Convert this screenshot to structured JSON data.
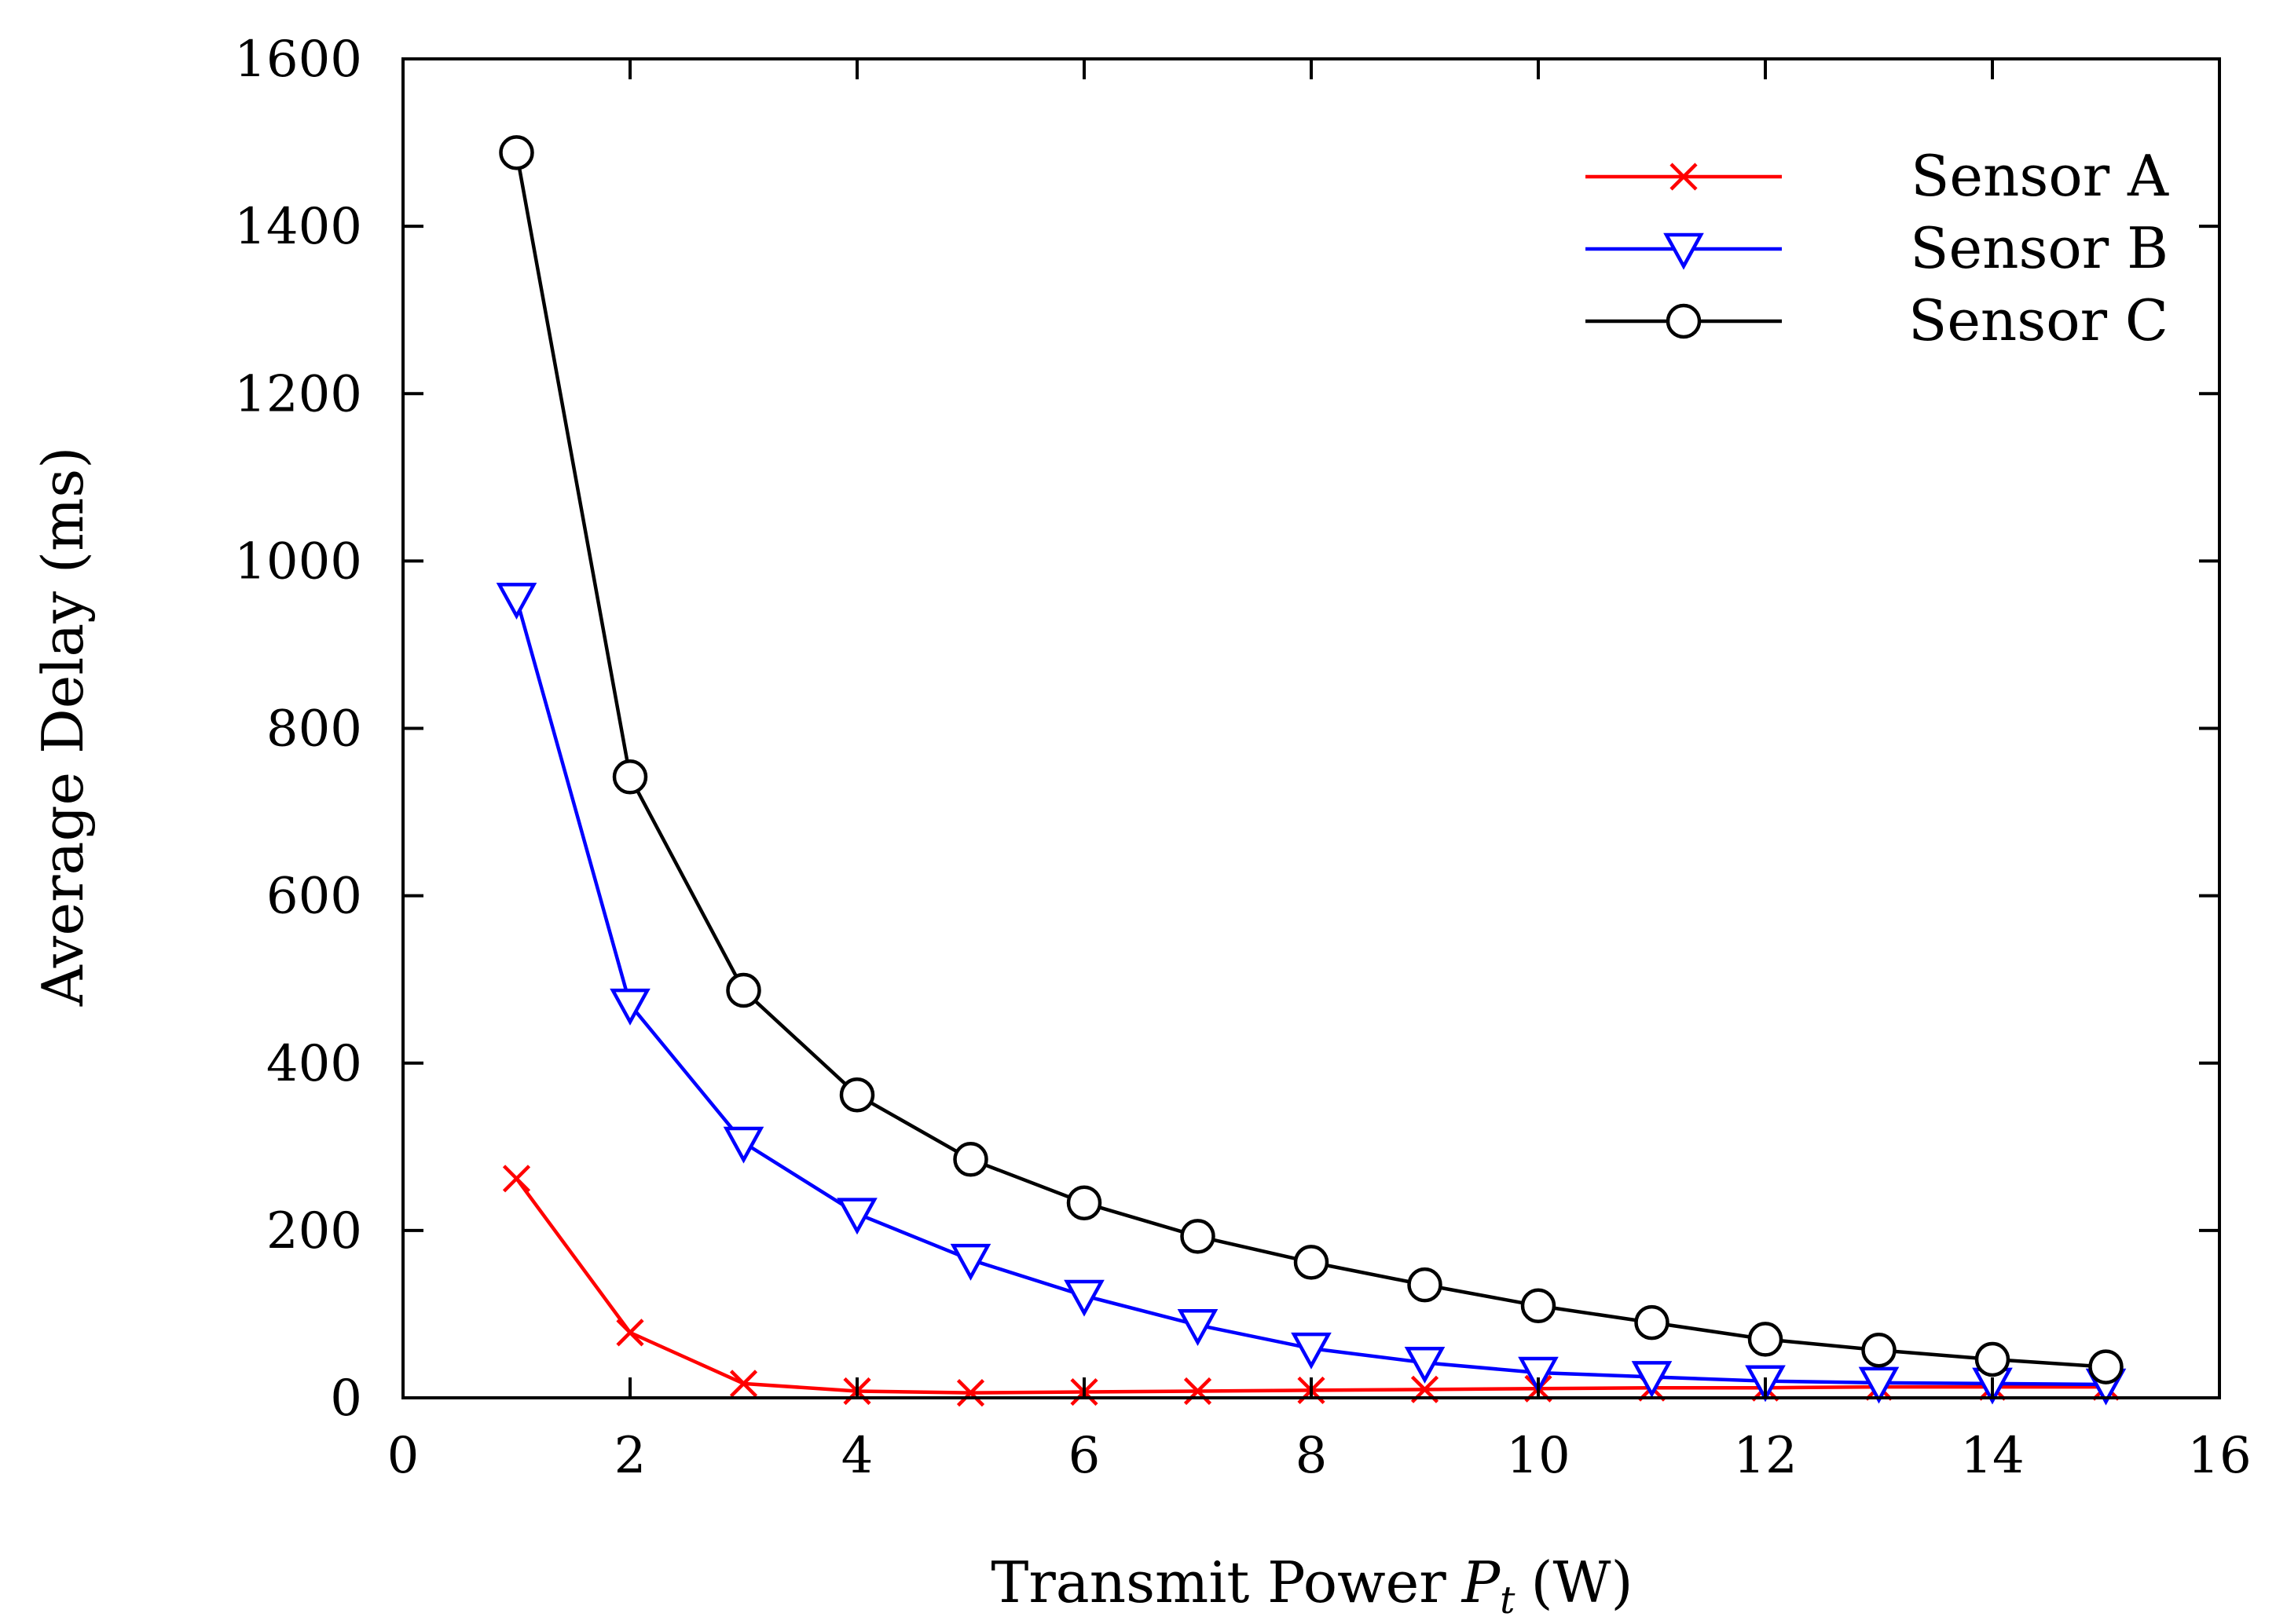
{
  "chart_data": {
    "type": "line",
    "title": "",
    "xlabel": "Transmit Power",
    "xlabel_symbol": "P",
    "xlabel_subscript": "t",
    "xlabel_unit": "(W)",
    "ylabel": "Average Delay (ms)",
    "xlim": [
      0,
      16
    ],
    "ylim": [
      0,
      1600
    ],
    "x_ticks": [
      0,
      2,
      4,
      6,
      8,
      10,
      12,
      14,
      16
    ],
    "y_ticks": [
      0,
      200,
      400,
      600,
      800,
      1000,
      1200,
      1400,
      1600
    ],
    "grid": false,
    "legend_position": "top-right",
    "x": [
      1,
      2,
      3,
      4,
      5,
      6,
      7,
      8,
      9,
      10,
      11,
      12,
      13,
      14,
      15
    ],
    "series": [
      {
        "name": "Sensor A",
        "color": "#ff0000",
        "marker": "x",
        "values": [
          262,
          78,
          17,
          8,
          6,
          7,
          8,
          9,
          10,
          11,
          12,
          12,
          13,
          13,
          13
        ]
      },
      {
        "name": "Sensor B",
        "color": "#0000ff",
        "marker": "triangle-down",
        "values": [
          955,
          470,
          305,
          220,
          165,
          122,
          87,
          59,
          42,
          30,
          25,
          20,
          18,
          17,
          16
        ]
      },
      {
        "name": "Sensor C",
        "color": "#000000",
        "marker": "circle",
        "values": [
          1488,
          742,
          487,
          362,
          285,
          233,
          193,
          162,
          135,
          110,
          90,
          70,
          57,
          46,
          37
        ]
      }
    ]
  }
}
